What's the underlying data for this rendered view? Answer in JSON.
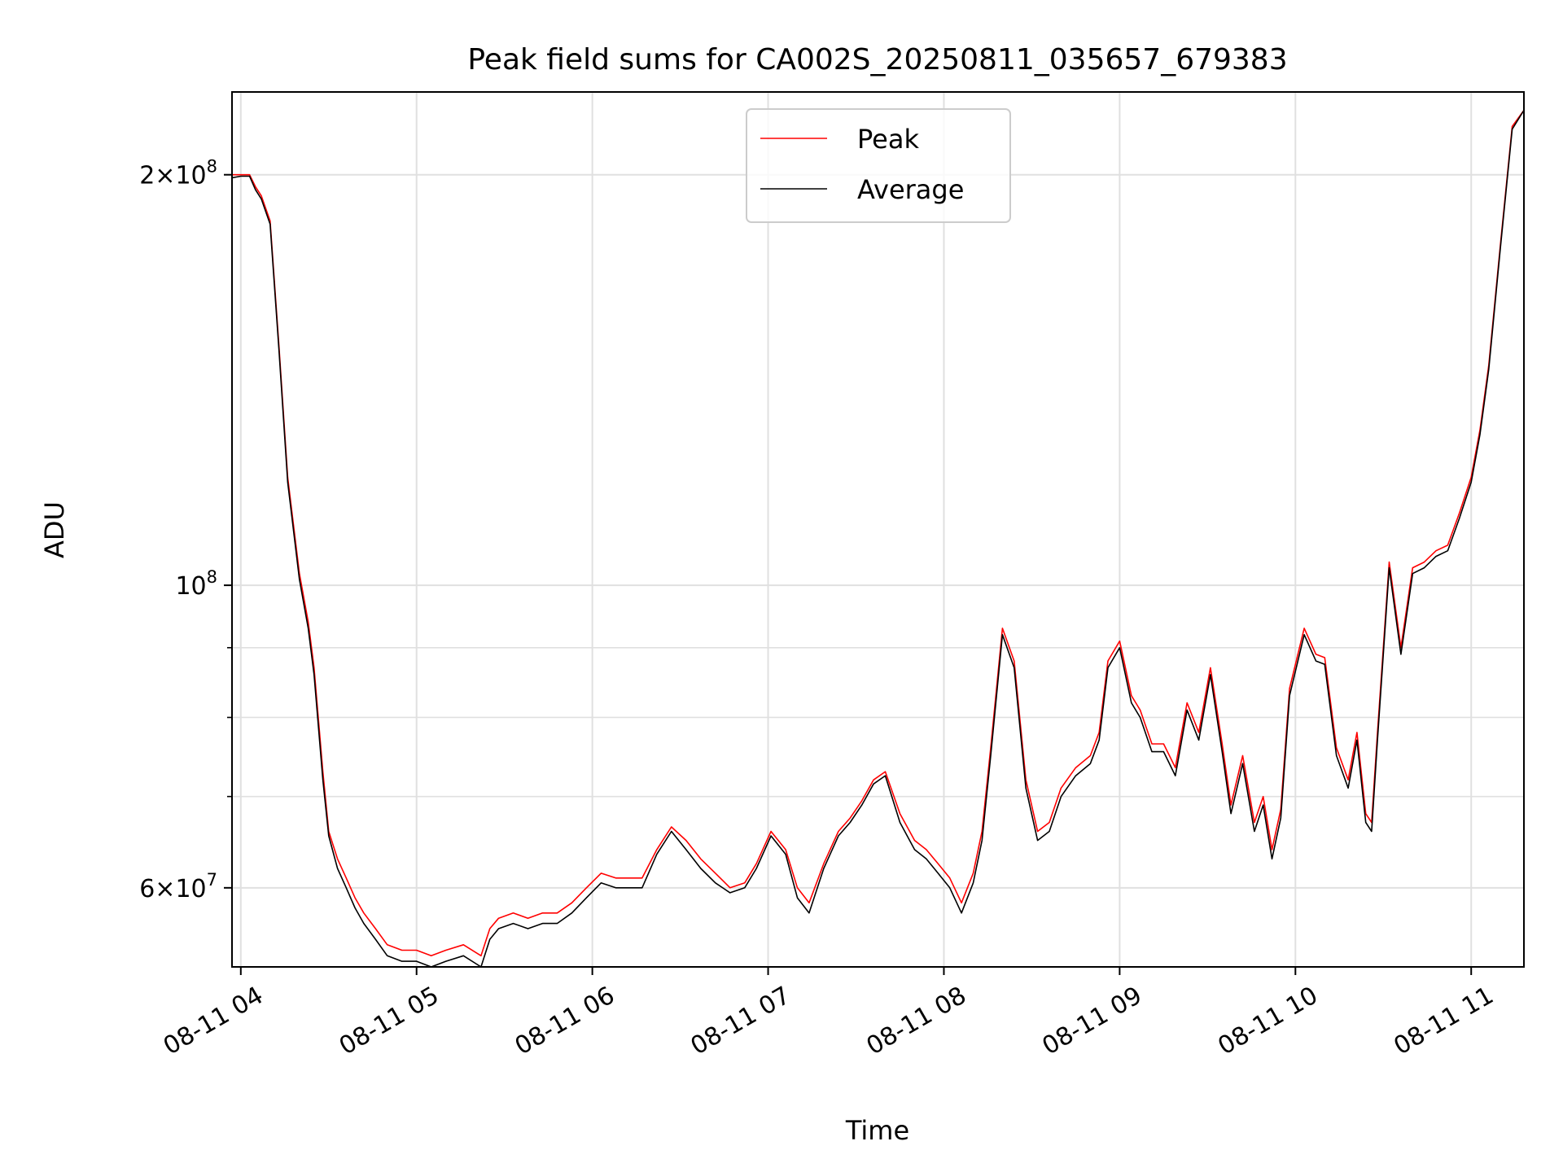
{
  "chart_data": {
    "type": "line",
    "title": "Peak field sums for CA002S_20250811_035657_679383",
    "xlabel": "Time",
    "ylabel": "ADU",
    "x_tick_labels": [
      "08-11 04",
      "08-11 05",
      "08-11 06",
      "08-11 07",
      "08-11 08",
      "08-11 09",
      "08-11 10",
      "08-11 11"
    ],
    "y_tick_labels": [
      {
        "value": 60000000,
        "base": "6",
        "exp": "7",
        "mult": true
      },
      {
        "value": 100000000,
        "base": "10",
        "exp": "8",
        "mult": false
      },
      {
        "value": 200000000,
        "base": "2",
        "exp": "8",
        "mult": true
      }
    ],
    "y_minor_ticks": [
      70000000,
      80000000,
      90000000
    ],
    "y_scale": "log",
    "xlim": [
      "2025-08-11 03:57",
      "2025-08-11 11:18"
    ],
    "ylim": [
      52500000,
      230000000
    ],
    "grid": true,
    "legend_position": "top-center",
    "colors": {
      "Peak": "#ff0000",
      "Average": "#000000",
      "grid": "#e0e0e0"
    },
    "series": [
      {
        "name": "Peak",
        "x": [
          "2025-08-11 03:57",
          "2025-08-11 04:00",
          "2025-08-11 04:03",
          "2025-08-11 04:05",
          "2025-08-11 04:07",
          "2025-08-11 04:10",
          "2025-08-11 04:13",
          "2025-08-11 04:16",
          "2025-08-11 04:20",
          "2025-08-11 04:23",
          "2025-08-11 04:25",
          "2025-08-11 04:28",
          "2025-08-11 04:30",
          "2025-08-11 04:33",
          "2025-08-11 04:36",
          "2025-08-11 04:39",
          "2025-08-11 04:42",
          "2025-08-11 04:46",
          "2025-08-11 04:50",
          "2025-08-11 04:55",
          "2025-08-11 05:00",
          "2025-08-11 05:05",
          "2025-08-11 05:10",
          "2025-08-11 05:16",
          "2025-08-11 05:22",
          "2025-08-11 05:25",
          "2025-08-11 05:28",
          "2025-08-11 05:33",
          "2025-08-11 05:38",
          "2025-08-11 05:43",
          "2025-08-11 05:48",
          "2025-08-11 05:53",
          "2025-08-11 05:58",
          "2025-08-11 06:03",
          "2025-08-11 06:08",
          "2025-08-11 06:13",
          "2025-08-11 06:17",
          "2025-08-11 06:22",
          "2025-08-11 06:27",
          "2025-08-11 06:32",
          "2025-08-11 06:37",
          "2025-08-11 06:42",
          "2025-08-11 06:47",
          "2025-08-11 06:52",
          "2025-08-11 06:56",
          "2025-08-11 07:01",
          "2025-08-11 07:06",
          "2025-08-11 07:10",
          "2025-08-11 07:14",
          "2025-08-11 07:19",
          "2025-08-11 07:24",
          "2025-08-11 07:28",
          "2025-08-11 07:32",
          "2025-08-11 07:36",
          "2025-08-11 07:40",
          "2025-08-11 07:45",
          "2025-08-11 07:50",
          "2025-08-11 07:54",
          "2025-08-11 07:58",
          "2025-08-11 08:02",
          "2025-08-11 08:06",
          "2025-08-11 08:10",
          "2025-08-11 08:13",
          "2025-08-11 08:16",
          "2025-08-11 08:20",
          "2025-08-11 08:24",
          "2025-08-11 08:28",
          "2025-08-11 08:32",
          "2025-08-11 08:36",
          "2025-08-11 08:40",
          "2025-08-11 08:45",
          "2025-08-11 08:50",
          "2025-08-11 08:53",
          "2025-08-11 08:56",
          "2025-08-11 09:00",
          "2025-08-11 09:04",
          "2025-08-11 09:07",
          "2025-08-11 09:11",
          "2025-08-11 09:15",
          "2025-08-11 09:19",
          "2025-08-11 09:23",
          "2025-08-11 09:27",
          "2025-08-11 09:31",
          "2025-08-11 09:35",
          "2025-08-11 09:38",
          "2025-08-11 09:42",
          "2025-08-11 09:46",
          "2025-08-11 09:49",
          "2025-08-11 09:52",
          "2025-08-11 09:55",
          "2025-08-11 09:58",
          "2025-08-11 10:03",
          "2025-08-11 10:07",
          "2025-08-11 10:10",
          "2025-08-11 10:14",
          "2025-08-11 10:18",
          "2025-08-11 10:21",
          "2025-08-11 10:24",
          "2025-08-11 10:26",
          "2025-08-11 10:28",
          "2025-08-11 10:32",
          "2025-08-11 10:36",
          "2025-08-11 10:40",
          "2025-08-11 10:44",
          "2025-08-11 10:48",
          "2025-08-11 10:52",
          "2025-08-11 10:56",
          "2025-08-11 11:00",
          "2025-08-11 11:03",
          "2025-08-11 11:06",
          "2025-08-11 11:10",
          "2025-08-11 11:14",
          "2025-08-11 11:18"
        ],
        "values": [
          200000000,
          200000000,
          200000000,
          196000000,
          193000000,
          185000000,
          150000000,
          120000000,
          102000000,
          94000000,
          87000000,
          73000000,
          66000000,
          63000000,
          61000000,
          59000000,
          57500000,
          56000000,
          54500000,
          54000000,
          54000000,
          53500000,
          54000000,
          54500000,
          53500000,
          56000000,
          57000000,
          57500000,
          57000000,
          57500000,
          57500000,
          58500000,
          60000000,
          61500000,
          61000000,
          61000000,
          61000000,
          64000000,
          66500000,
          65000000,
          63000000,
          61500000,
          60000000,
          60500000,
          62500000,
          66000000,
          64000000,
          60000000,
          58500000,
          62500000,
          66000000,
          67500000,
          69500000,
          72000000,
          73000000,
          68000000,
          65000000,
          64000000,
          62500000,
          61000000,
          58500000,
          61500000,
          66000000,
          76000000,
          93000000,
          88000000,
          72000000,
          66000000,
          67000000,
          71000000,
          73500000,
          75000000,
          78000000,
          88000000,
          91000000,
          83000000,
          81000000,
          76500000,
          76500000,
          73500000,
          82000000,
          78000000,
          87000000,
          76500000,
          69000000,
          75000000,
          67000000,
          70000000,
          64000000,
          68500000,
          84000000,
          93000000,
          89000000,
          88500000,
          76000000,
          72000000,
          78000000,
          68000000,
          67000000,
          78000000,
          104000000,
          90000000,
          103000000,
          104000000,
          106000000,
          107000000,
          113000000,
          120000000,
          130000000,
          145000000,
          178000000,
          217000000,
          223000000
        ]
      },
      {
        "name": "Average",
        "x": [
          "2025-08-11 03:57",
          "2025-08-11 04:00",
          "2025-08-11 04:03",
          "2025-08-11 04:05",
          "2025-08-11 04:07",
          "2025-08-11 04:10",
          "2025-08-11 04:13",
          "2025-08-11 04:16",
          "2025-08-11 04:20",
          "2025-08-11 04:23",
          "2025-08-11 04:25",
          "2025-08-11 04:28",
          "2025-08-11 04:30",
          "2025-08-11 04:33",
          "2025-08-11 04:36",
          "2025-08-11 04:39",
          "2025-08-11 04:42",
          "2025-08-11 04:46",
          "2025-08-11 04:50",
          "2025-08-11 04:55",
          "2025-08-11 05:00",
          "2025-08-11 05:05",
          "2025-08-11 05:10",
          "2025-08-11 05:16",
          "2025-08-11 05:22",
          "2025-08-11 05:25",
          "2025-08-11 05:28",
          "2025-08-11 05:33",
          "2025-08-11 05:38",
          "2025-08-11 05:43",
          "2025-08-11 05:48",
          "2025-08-11 05:53",
          "2025-08-11 05:58",
          "2025-08-11 06:03",
          "2025-08-11 06:08",
          "2025-08-11 06:13",
          "2025-08-11 06:17",
          "2025-08-11 06:22",
          "2025-08-11 06:27",
          "2025-08-11 06:32",
          "2025-08-11 06:37",
          "2025-08-11 06:42",
          "2025-08-11 06:47",
          "2025-08-11 06:52",
          "2025-08-11 06:56",
          "2025-08-11 07:01",
          "2025-08-11 07:06",
          "2025-08-11 07:10",
          "2025-08-11 07:14",
          "2025-08-11 07:19",
          "2025-08-11 07:24",
          "2025-08-11 07:28",
          "2025-08-11 07:32",
          "2025-08-11 07:36",
          "2025-08-11 07:40",
          "2025-08-11 07:45",
          "2025-08-11 07:50",
          "2025-08-11 07:54",
          "2025-08-11 07:58",
          "2025-08-11 08:02",
          "2025-08-11 08:06",
          "2025-08-11 08:10",
          "2025-08-11 08:13",
          "2025-08-11 08:16",
          "2025-08-11 08:20",
          "2025-08-11 08:24",
          "2025-08-11 08:28",
          "2025-08-11 08:32",
          "2025-08-11 08:36",
          "2025-08-11 08:40",
          "2025-08-11 08:45",
          "2025-08-11 08:50",
          "2025-08-11 08:53",
          "2025-08-11 08:56",
          "2025-08-11 09:00",
          "2025-08-11 09:04",
          "2025-08-11 09:07",
          "2025-08-11 09:11",
          "2025-08-11 09:15",
          "2025-08-11 09:19",
          "2025-08-11 09:23",
          "2025-08-11 09:27",
          "2025-08-11 09:31",
          "2025-08-11 09:35",
          "2025-08-11 09:38",
          "2025-08-11 09:42",
          "2025-08-11 09:46",
          "2025-08-11 09:49",
          "2025-08-11 09:52",
          "2025-08-11 09:55",
          "2025-08-11 09:58",
          "2025-08-11 10:03",
          "2025-08-11 10:07",
          "2025-08-11 10:10",
          "2025-08-11 10:14",
          "2025-08-11 10:18",
          "2025-08-11 10:21",
          "2025-08-11 10:24",
          "2025-08-11 10:26",
          "2025-08-11 10:28",
          "2025-08-11 10:32",
          "2025-08-11 10:36",
          "2025-08-11 10:40",
          "2025-08-11 10:44",
          "2025-08-11 10:48",
          "2025-08-11 10:52",
          "2025-08-11 10:56",
          "2025-08-11 11:00",
          "2025-08-11 11:03",
          "2025-08-11 11:06",
          "2025-08-11 11:10",
          "2025-08-11 11:14",
          "2025-08-11 11:18"
        ],
        "values": [
          199000000,
          199500000,
          199500000,
          195000000,
          192000000,
          184000000,
          149000000,
          119000000,
          101000000,
          93000000,
          86000000,
          72000000,
          65500000,
          62000000,
          60000000,
          58000000,
          56500000,
          55000000,
          53500000,
          53000000,
          53000000,
          52500000,
          53000000,
          53500000,
          52500000,
          55000000,
          56000000,
          56500000,
          56000000,
          56500000,
          56500000,
          57500000,
          59000000,
          60500000,
          60000000,
          60000000,
          60000000,
          63500000,
          66000000,
          64000000,
          62000000,
          60500000,
          59500000,
          60000000,
          62000000,
          65500000,
          63500000,
          59000000,
          57500000,
          62000000,
          65500000,
          67000000,
          69000000,
          71500000,
          72500000,
          67000000,
          64000000,
          63000000,
          61500000,
          60000000,
          57500000,
          60500000,
          65000000,
          75000000,
          92000000,
          87000000,
          71000000,
          65000000,
          66000000,
          70000000,
          72500000,
          74000000,
          77000000,
          87000000,
          90000000,
          82000000,
          80000000,
          75500000,
          75500000,
          72500000,
          81000000,
          77000000,
          86000000,
          75500000,
          68000000,
          74000000,
          66000000,
          69000000,
          63000000,
          67500000,
          83000000,
          92000000,
          88000000,
          87500000,
          75000000,
          71000000,
          77000000,
          67000000,
          66000000,
          77000000,
          103000000,
          89000000,
          102000000,
          103000000,
          105000000,
          106000000,
          112000000,
          119000000,
          129000000,
          144000000,
          177000000,
          216000000,
          223000000
        ]
      }
    ]
  }
}
